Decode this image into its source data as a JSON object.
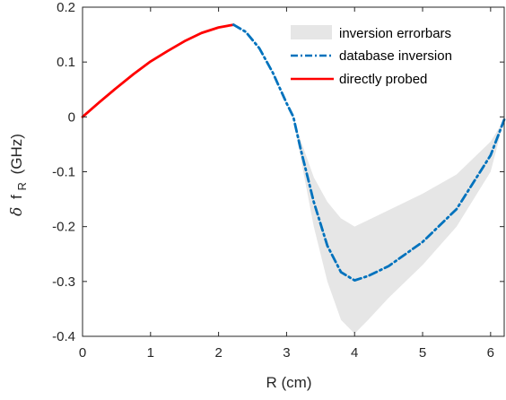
{
  "chart_data": {
    "type": "line",
    "xlabel": "R (cm)",
    "ylabel": {
      "prefix": "δ",
      "main": "f",
      "subscript": "R",
      "suffix": "(GHz)"
    },
    "xlim": [
      0,
      6.2
    ],
    "ylim": [
      -0.4,
      0.2
    ],
    "xticks": [
      0,
      1,
      2,
      3,
      4,
      5,
      6
    ],
    "yticks": [
      -0.4,
      -0.3,
      -0.2,
      -0.1,
      0,
      0.1,
      0.2
    ],
    "xtick_labels": [
      "0",
      "1",
      "2",
      "3",
      "4",
      "5",
      "6"
    ],
    "ytick_labels": [
      "-0.4",
      "-0.3",
      "-0.2",
      "-0.1",
      "0",
      "0.1",
      "0.2"
    ],
    "grid": false,
    "legend_position": "top-right",
    "legend": [
      "inversion errorbars",
      "database inversion",
      "directly probed"
    ],
    "series": [
      {
        "name": "directly probed",
        "style": "solid",
        "color": "#ff0000",
        "x": [
          0,
          0.25,
          0.5,
          0.75,
          1.0,
          1.25,
          1.5,
          1.75,
          2.0,
          2.22
        ],
        "y": [
          0.0,
          0.027,
          0.053,
          0.078,
          0.101,
          0.12,
          0.138,
          0.153,
          0.163,
          0.168
        ]
      },
      {
        "name": "database inversion",
        "style": "dashdot",
        "color": "#0072bd",
        "x": [
          2.22,
          2.4,
          2.6,
          2.8,
          3.0,
          3.1,
          3.2,
          3.4,
          3.6,
          3.8,
          4.0,
          4.2,
          4.5,
          5.0,
          5.5,
          6.0,
          6.2
        ],
        "y": [
          0.168,
          0.155,
          0.125,
          0.08,
          0.025,
          0.0,
          -0.055,
          -0.155,
          -0.235,
          -0.283,
          -0.298,
          -0.29,
          -0.272,
          -0.228,
          -0.168,
          -0.07,
          -0.005
        ]
      },
      {
        "name": "inversion errorbars",
        "type": "band",
        "color": "#e6e6e6",
        "x": [
          3.1,
          3.2,
          3.4,
          3.6,
          3.8,
          4.0,
          4.2,
          4.5,
          5.0,
          5.5,
          6.0,
          6.2
        ],
        "y_upper": [
          0.0,
          -0.04,
          -0.11,
          -0.155,
          -0.185,
          -0.2,
          -0.188,
          -0.17,
          -0.14,
          -0.105,
          -0.045,
          -0.005
        ],
        "y_lower": [
          0.0,
          -0.07,
          -0.2,
          -0.3,
          -0.37,
          -0.395,
          -0.37,
          -0.33,
          -0.27,
          -0.2,
          -0.1,
          -0.005
        ]
      }
    ]
  }
}
